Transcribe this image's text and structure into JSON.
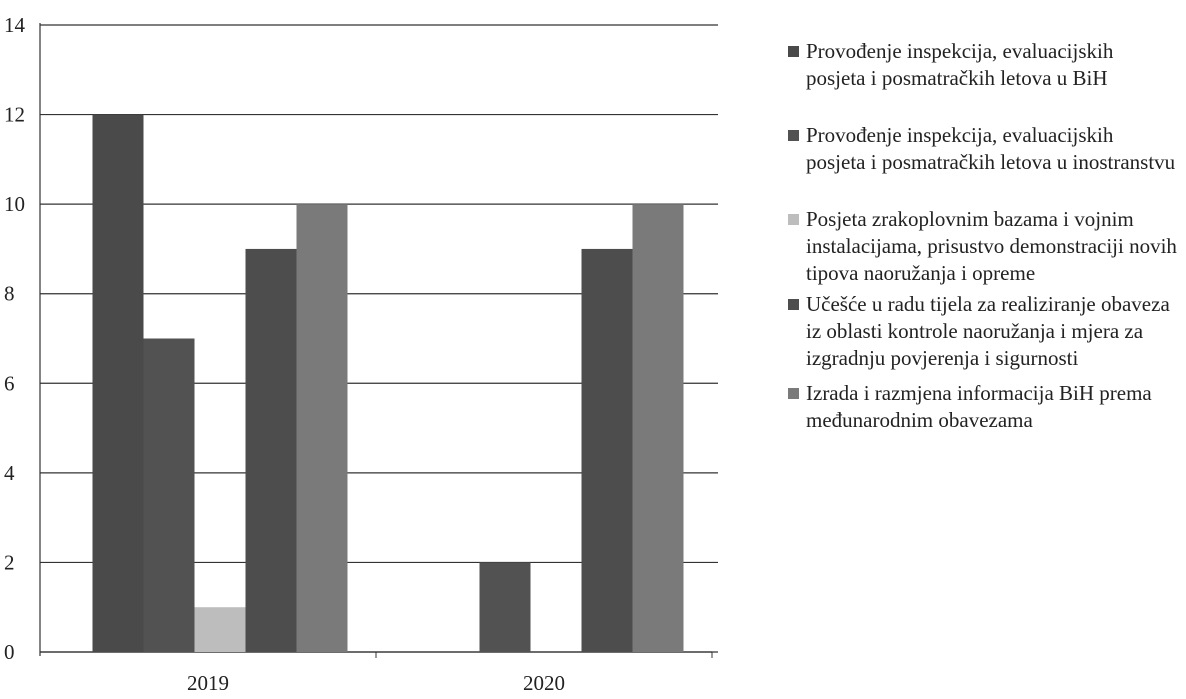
{
  "chart_data": {
    "type": "bar",
    "categories": [
      "2019",
      "2020"
    ],
    "series": [
      {
        "name": "Provođenje inspekcija, evaluacijskih posjeta i posmatračkih letova u BiH",
        "color": "#4a4a4a",
        "values": [
          12,
          0
        ]
      },
      {
        "name": "Provođenje inspekcija, evaluacijskih posjeta i posmatračkih letova u inostranstvu",
        "color": "#525252",
        "values": [
          7,
          2
        ]
      },
      {
        "name": "Posjeta zrakoplovnim bazama i vojnim instalacijama, prisustvo demonstraciji novih tipova naoružanja i opreme",
        "color": "#bdbdbd",
        "values": [
          1,
          0
        ]
      },
      {
        "name": "Učešće u radu tijela za realiziranje obaveza iz oblasti kontrole naoružanja i mjera za izgradnju povjerenja i sigurnosti",
        "color": "#4d4d4d",
        "values": [
          9,
          9
        ]
      },
      {
        "name": "Izrada i razmjena informacija BiH prema međunarodnim obavezama",
        "color": "#7a7a7a",
        "values": [
          10,
          10
        ]
      }
    ],
    "ylim": [
      0,
      14
    ],
    "yticks": [
      0,
      2,
      4,
      6,
      8,
      10,
      12,
      14
    ],
    "grid": true,
    "legend": "right"
  }
}
